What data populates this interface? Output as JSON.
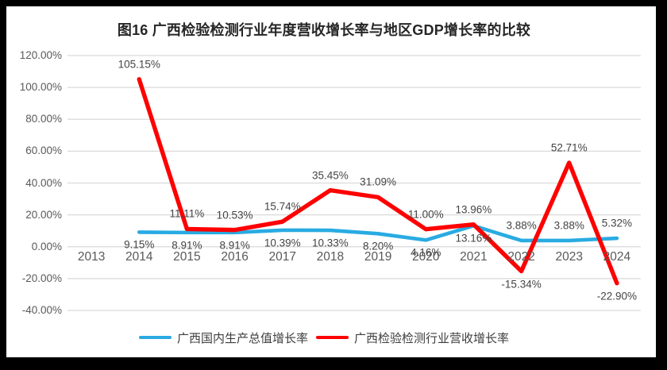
{
  "frame": {
    "border_color": "#000000",
    "chart_background": "#FFFFFF"
  },
  "chart_data": {
    "type": "line",
    "title": "图16 广西检验检测行业年度营收增长率与地区GDP增长率的比较",
    "categories": [
      "2013",
      "2014",
      "2015",
      "2016",
      "2017",
      "2018",
      "2019",
      "2020",
      "2021",
      "2022",
      "2023",
      "2024"
    ],
    "series": [
      {
        "name": "广西国内生产总值增长率",
        "color": "#29ABE2",
        "values": [
          null,
          9.15,
          8.91,
          8.91,
          10.39,
          10.33,
          8.2,
          4.16,
          13.16,
          3.88,
          3.88,
          5.32
        ],
        "labels": [
          null,
          "9.15%",
          "8.91%",
          "8.91%",
          "10.39%",
          "10.33%",
          "8.20%",
          "4.16%",
          "13.16%",
          "3.88%",
          "3.88%",
          "5.32%"
        ],
        "label_pos": [
          null,
          "below",
          "below",
          "below",
          "below",
          "below",
          "below",
          "below",
          "below",
          "above",
          "above",
          "above"
        ]
      },
      {
        "name": "广西检验检测行业营收增长率",
        "color": "#FF0000",
        "values": [
          null,
          105.15,
          11.11,
          10.53,
          15.74,
          35.45,
          31.09,
          11.0,
          13.96,
          -15.34,
          52.71,
          -22.9
        ],
        "labels": [
          null,
          "105.15%",
          "11.11%",
          "10.53%",
          "15.74%",
          "35.45%",
          "31.09%",
          "11.00%",
          "13.96%",
          "-15.34%",
          "52.71%",
          "-22.90%"
        ],
        "label_pos": [
          null,
          "above",
          "above",
          "above",
          "above",
          "above",
          "above",
          "above",
          "above",
          "below",
          "above",
          "below"
        ]
      }
    ],
    "y_axis": {
      "tick_labels": [
        "120.00%",
        "100.00%",
        "80.00%",
        "60.00%",
        "40.00%",
        "20.00%",
        "0.00%",
        "-20.00%",
        "-40.00%"
      ],
      "tick_values": [
        120,
        100,
        80,
        60,
        40,
        20,
        0,
        -20,
        -40
      ],
      "min": -40,
      "max": 120
    },
    "grid": true,
    "gridline_color": "#D9D9D9",
    "axis_text_color": "#595959",
    "data_label_color": "#444444",
    "legend_position": "bottom"
  }
}
